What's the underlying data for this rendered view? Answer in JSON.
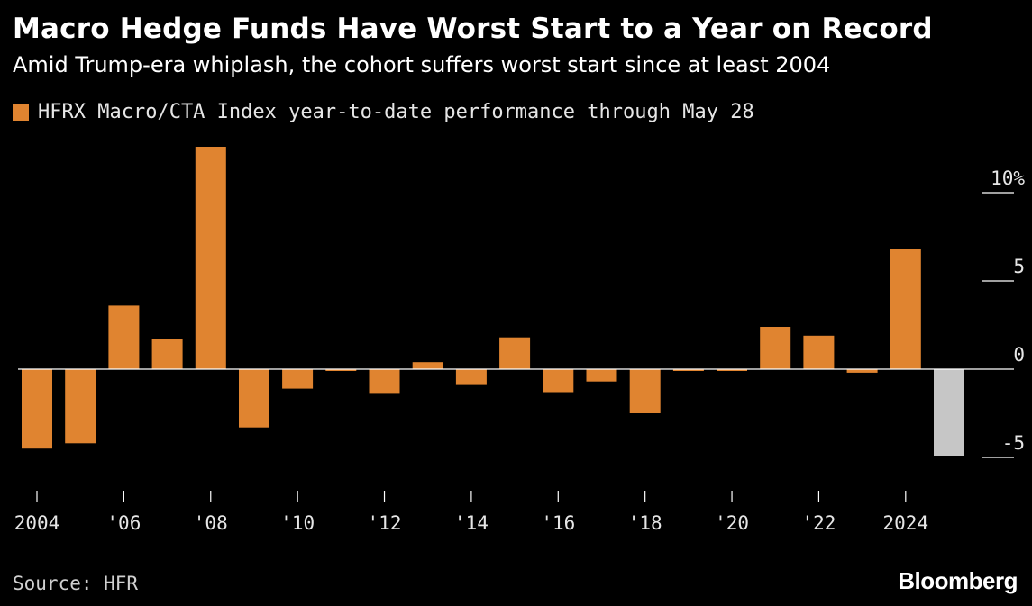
{
  "header": {
    "title": "Macro Hedge Funds Have Worst Start to a Year on Record",
    "subtitle": "Amid Trump-era whiplash, the cohort suffers worst start since at least 2004"
  },
  "footer": {
    "source": "Source: HFR",
    "brand": "Bloomberg"
  },
  "colors": {
    "background": "#000000",
    "bar": "#e08430",
    "bar_highlight": "#c6c6c6",
    "axis": "#ffffff",
    "text": "#ffffff"
  },
  "chart_data": {
    "type": "bar",
    "title": "Macro Hedge Funds Have Worst Start to a Year on Record",
    "subtitle": "Amid Trump-era whiplash, the cohort suffers worst start since at least 2004",
    "legend": [
      "HFRX Macro/CTA Index year-to-date performance through May 28"
    ],
    "legend_position": "top-left",
    "series": [
      {
        "name": "HFRX Macro/CTA Index year-to-date performance through May 28",
        "x": [
          2004,
          2005,
          2006,
          2007,
          2008,
          2009,
          2010,
          2011,
          2012,
          2013,
          2014,
          2015,
          2016,
          2017,
          2018,
          2019,
          2020,
          2021,
          2022,
          2023,
          2024,
          2025
        ],
        "values": [
          -4.5,
          -4.2,
          3.6,
          1.7,
          12.6,
          -3.3,
          -1.1,
          -0.1,
          -1.4,
          0.4,
          -0.9,
          1.8,
          -1.3,
          -0.7,
          -2.5,
          -0.1,
          -0.1,
          2.4,
          1.9,
          -0.2,
          6.8,
          -4.9
        ]
      }
    ],
    "highlight_x": 2025,
    "x_ticks": [
      2004,
      2006,
      2008,
      2010,
      2012,
      2014,
      2016,
      2018,
      2020,
      2022,
      2024
    ],
    "x_tick_labels": [
      "2004",
      "'06",
      "'08",
      "'10",
      "'12",
      "'14",
      "'16",
      "'18",
      "'20",
      "'22",
      "2024"
    ],
    "y_ticks": [
      10,
      5,
      0,
      -5
    ],
    "y_tick_labels": [
      "10%",
      "5",
      "0",
      "-5"
    ],
    "ylim": [
      -6.5,
      13
    ],
    "y_axis_position": "right",
    "grid": false
  }
}
